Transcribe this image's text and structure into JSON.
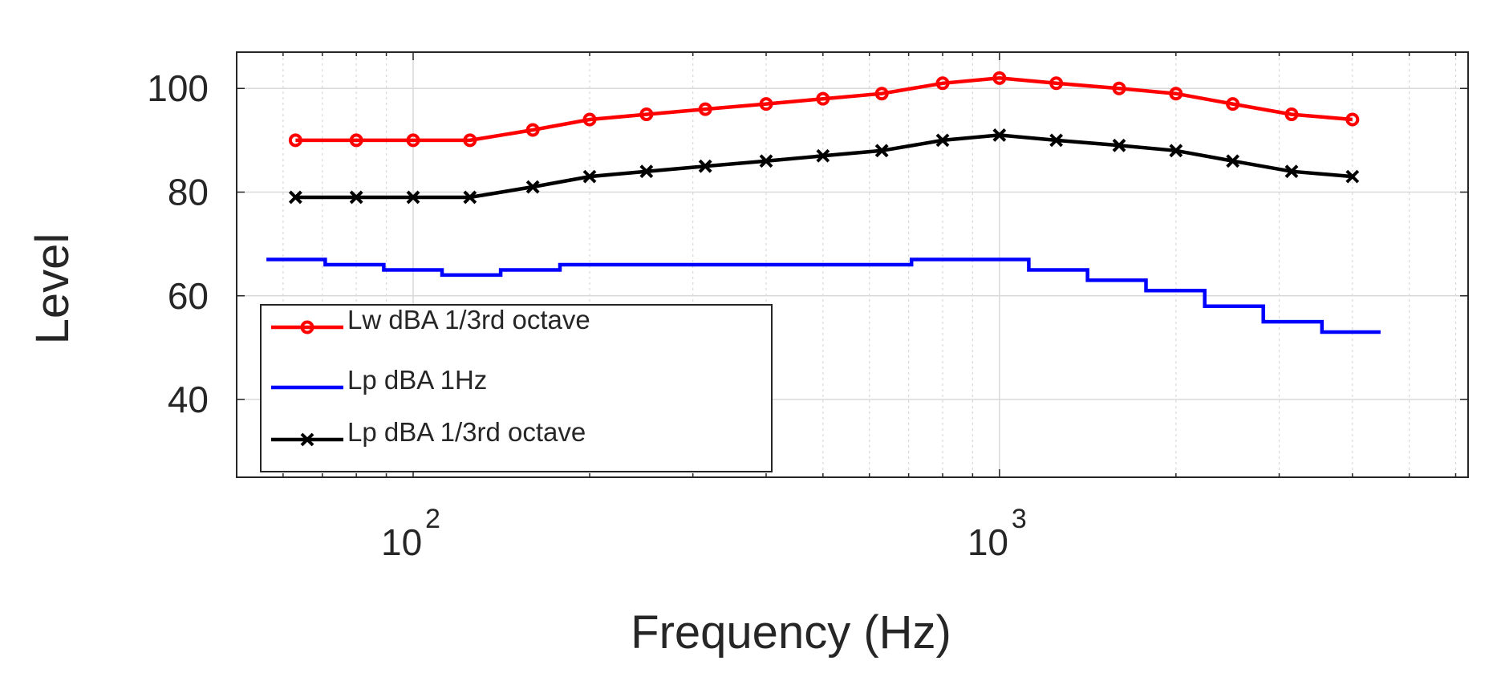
{
  "chart_data": {
    "type": "line",
    "xscale": "log",
    "xlabel": "Frequency (Hz)",
    "ylabel": "Level",
    "xlim": [
      50,
      6300
    ],
    "ylim": [
      25,
      107
    ],
    "grid": true,
    "legend_position": "bottom-left",
    "x_ticks": [
      {
        "base": "10",
        "exp": "2",
        "value": 100
      },
      {
        "base": "10",
        "exp": "3",
        "value": 1000
      }
    ],
    "y_ticks": [
      {
        "label": "40",
        "value": 40
      },
      {
        "label": "60",
        "value": 60
      },
      {
        "label": "80",
        "value": 80
      },
      {
        "label": "100",
        "value": 100
      }
    ],
    "series": [
      {
        "name": "Lw dBA 1/3rd octave",
        "color": "#ff0000",
        "marker": "circle",
        "style": "line",
        "x": [
          63,
          80,
          100,
          125,
          160,
          200,
          250,
          315,
          400,
          500,
          630,
          800,
          1000,
          1250,
          1600,
          2000,
          2500,
          3150,
          4000
        ],
        "y": [
          90,
          90,
          90,
          90,
          92,
          94,
          95,
          96,
          97,
          98,
          99,
          101,
          102,
          101,
          100,
          99,
          97,
          95,
          94
        ]
      },
      {
        "name": "Lp dBA 1Hz",
        "color": "#0000ff",
        "marker": "none",
        "style": "stairs",
        "edges": [
          56.2,
          70.8,
          89.1,
          112,
          141,
          178,
          224,
          282,
          355,
          447,
          562,
          708,
          891,
          1122,
          1413,
          1778,
          2239,
          2818,
          3548,
          4467
        ],
        "y": [
          67,
          66,
          65,
          64,
          65,
          66,
          66,
          66,
          66,
          66,
          66,
          67,
          67,
          65,
          63,
          61,
          58,
          55,
          53
        ]
      },
      {
        "name": "Lp dBA 1/3rd octave",
        "color": "#000000",
        "marker": "x",
        "style": "line",
        "x": [
          63,
          80,
          100,
          125,
          160,
          200,
          250,
          315,
          400,
          500,
          630,
          800,
          1000,
          1250,
          1600,
          2000,
          2500,
          3150,
          4000
        ],
        "y": [
          79,
          79,
          79,
          79,
          81,
          83,
          84,
          85,
          86,
          87,
          88,
          90,
          91,
          90,
          89,
          88,
          86,
          84,
          83
        ]
      }
    ]
  }
}
